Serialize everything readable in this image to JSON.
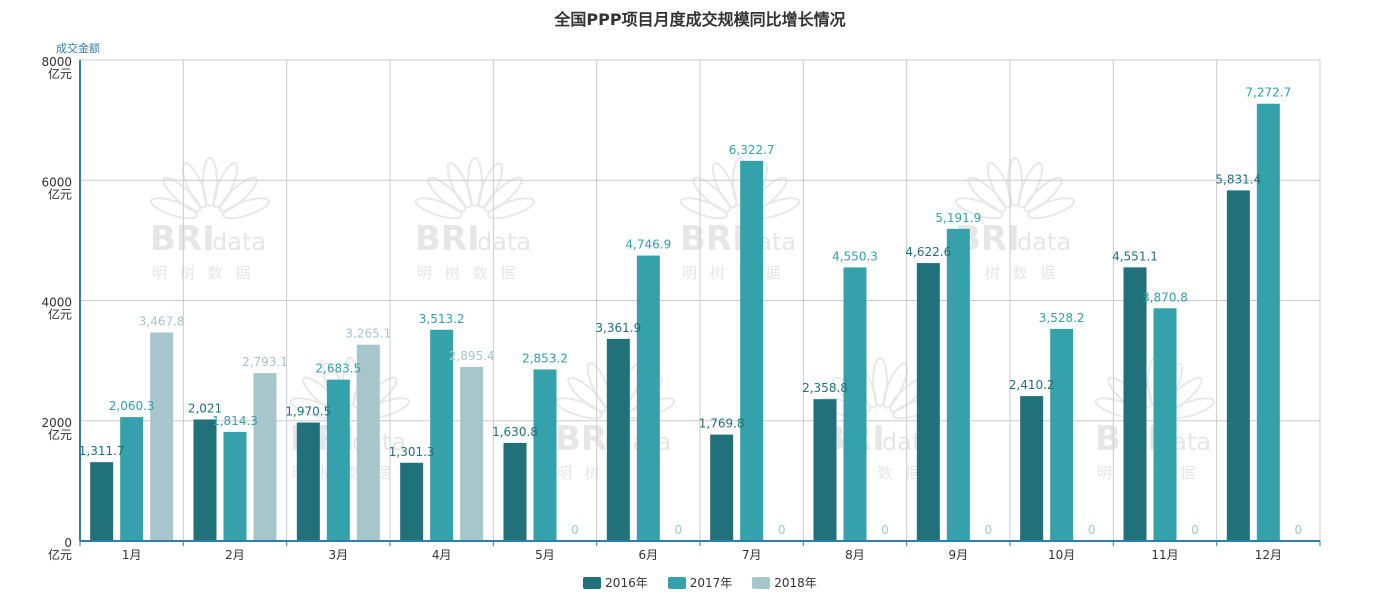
{
  "chart_data": {
    "type": "bar",
    "title": "全国PPP项目月度成交规模同比增长情况",
    "ylabel": "成交金额",
    "xlabel": "",
    "ylim": [
      0,
      8000
    ],
    "y_ticks": [
      0,
      2000,
      4000,
      6000,
      8000
    ],
    "y_tick_unit": "亿元",
    "grid": true,
    "legend_position": "bottom-center",
    "categories": [
      "1月",
      "2月",
      "3月",
      "4月",
      "5月",
      "6月",
      "7月",
      "8月",
      "9月",
      "10月",
      "11月",
      "12月"
    ],
    "series": [
      {
        "name": "2016年",
        "color": "#21717a",
        "values": [
          1311.7,
          2021,
          1970.5,
          1301.3,
          1630.8,
          3361.9,
          1769.8,
          2358.8,
          4622.6,
          2410.2,
          4551.1,
          5831.4
        ],
        "labels": [
          "1,311.7",
          "2,021",
          "1,970.5",
          "1,301.3",
          "1,630.8",
          "3,361.9",
          "1,769.8",
          "2,358.8",
          "4,622.6",
          "2,410.2",
          "4,551.1",
          "5,831.4"
        ]
      },
      {
        "name": "2017年",
        "color": "#34a1ab",
        "values": [
          2060.3,
          1814.3,
          2683.5,
          3513.2,
          2853.2,
          4746.9,
          6322.7,
          4550.3,
          5191.9,
          3528.2,
          3870.8,
          7272.7
        ],
        "labels": [
          "2,060.3",
          "1,814.3",
          "2,683.5",
          "3,513.2",
          "2,853.2",
          "4,746.9",
          "6,322.7",
          "4,550.3",
          "5,191.9",
          "3,528.2",
          "3,870.8",
          "7,272.7"
        ]
      },
      {
        "name": "2018年",
        "color": "#a7c6cb",
        "values": [
          3467.8,
          2793.1,
          3265.1,
          2895.4,
          0,
          0,
          0,
          0,
          0,
          0,
          0,
          0
        ],
        "labels": [
          "3,467.8",
          "2,793.1",
          "3,265.1",
          "2,895.4",
          "0",
          "0",
          "0",
          "0",
          "0",
          "0",
          "0",
          "0"
        ]
      }
    ]
  },
  "watermark": {
    "brand": "BRI",
    "suffix": "data",
    "chinese": "明 树 数 据"
  },
  "colors": {
    "axis": "#2f7fa8",
    "grid": "#cccccc",
    "tick_label": "#333333"
  }
}
